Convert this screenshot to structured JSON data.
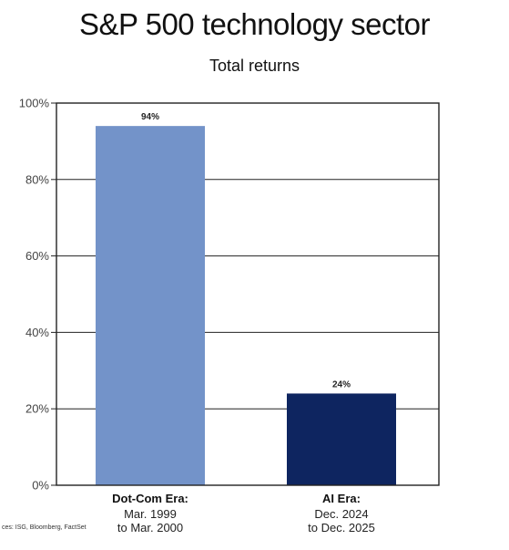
{
  "title": "S&P 500 technology sector",
  "subtitle": "Total returns",
  "source": "ces: ISG, Bloomberg, FactSet",
  "chart_data": {
    "type": "bar",
    "title": "S&P 500 technology sector",
    "subtitle": "Total returns",
    "categories": [
      "Dot-Com Era:",
      "AI Era:"
    ],
    "category_lines": [
      [
        "Mar. 1999",
        "to Mar. 2000"
      ],
      [
        "Dec. 2024",
        "to Dec. 2025"
      ]
    ],
    "values": [
      94,
      24
    ],
    "data_labels": [
      "94%",
      "24%"
    ],
    "bar_colors": [
      "#7393c9",
      "#0e2560"
    ],
    "ylim": [
      0,
      100
    ],
    "yticks": [
      0,
      20,
      40,
      60,
      80,
      100
    ],
    "ytick_labels": [
      "0%",
      "20%",
      "40%",
      "60%",
      "80%",
      "100%"
    ],
    "grid": true,
    "xlabel": "",
    "ylabel": ""
  }
}
